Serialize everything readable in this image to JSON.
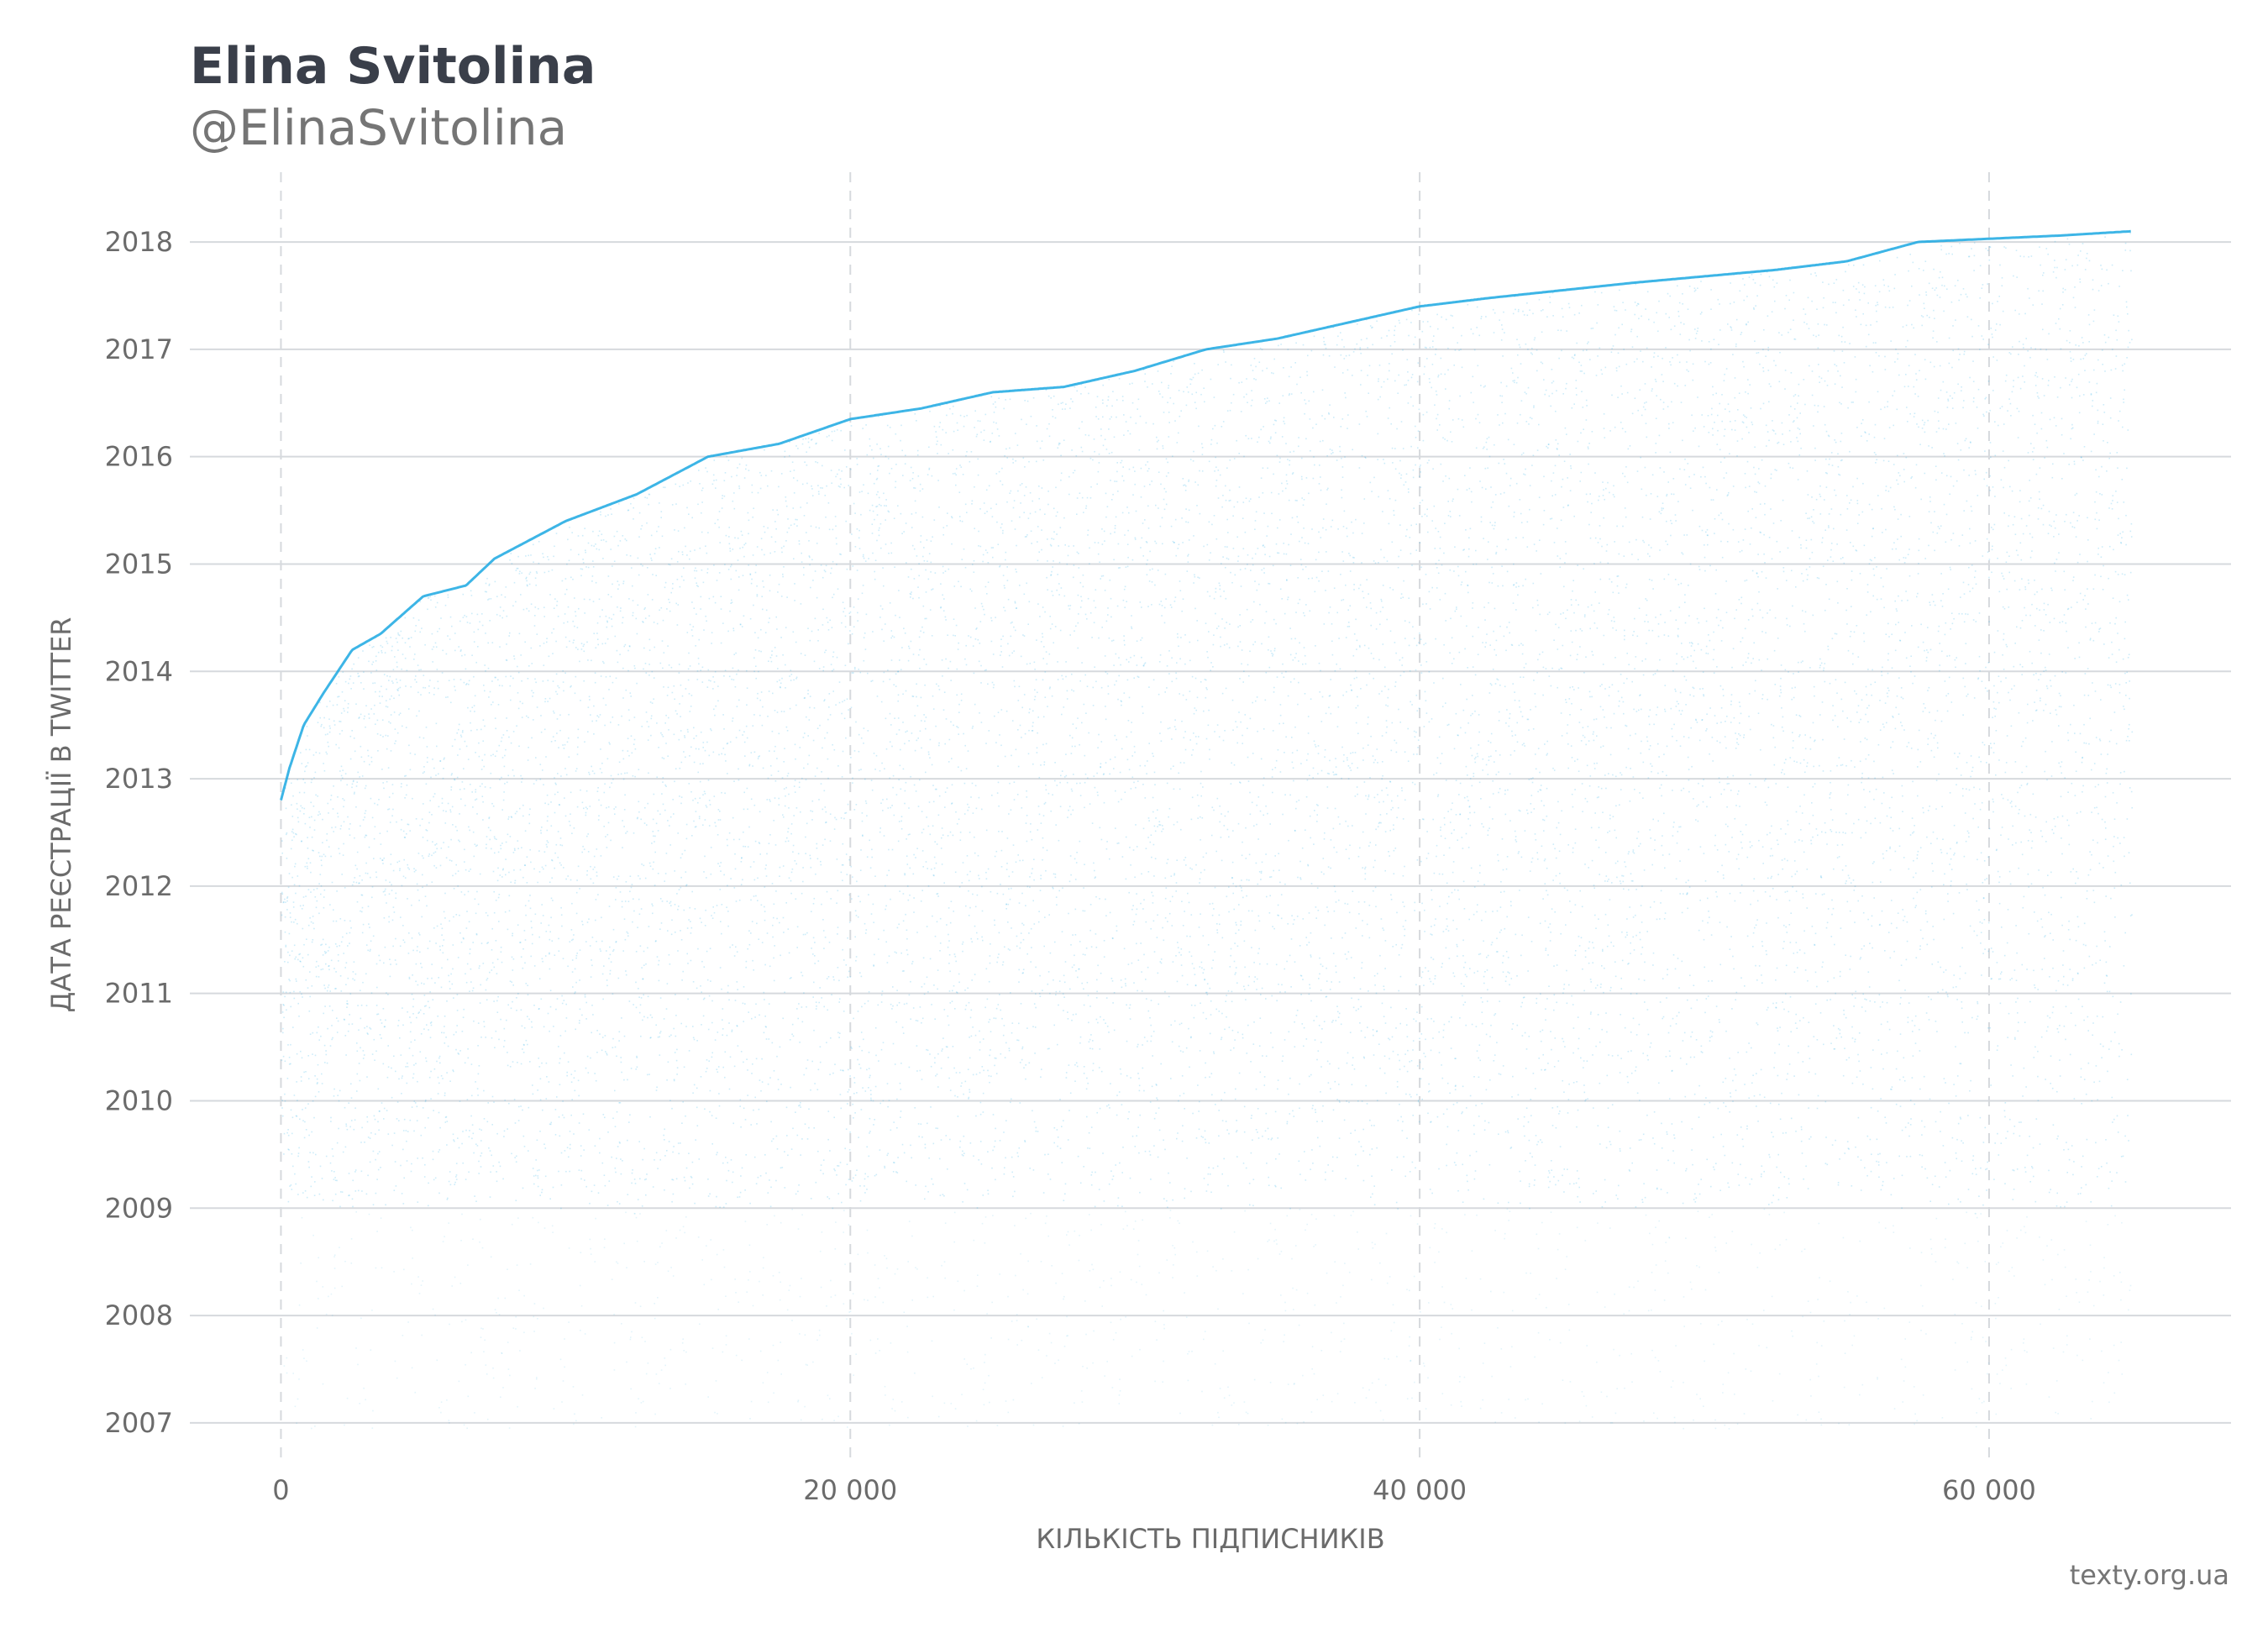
{
  "header": {
    "title": "Elina Svitolina",
    "subtitle": "@ElinaSvitolina"
  },
  "footer": {
    "credit": "texty.org.ua"
  },
  "colors": {
    "points": "#1ba8e2",
    "grid": "#d6d9dd",
    "text": "#6b6b6b",
    "title": "#3a3f4a"
  },
  "chart_data": {
    "type": "scatter",
    "title": "Elina Svitolina",
    "subtitle": "@ElinaSvitolina",
    "xlabel": "КІЛЬКІСТЬ ПІДПИСНИКІВ",
    "ylabel": "ДАТА РЕЄСТРАЦІЇ В TWITTER",
    "xlim": [
      -3200,
      68500
    ],
    "ylim": [
      2006.6,
      2018.65
    ],
    "x_ticks": [
      0,
      20000,
      40000,
      60000
    ],
    "x_tick_labels": [
      "0",
      "20 000",
      "40 000",
      "60 000"
    ],
    "y_ticks": [
      2007,
      2008,
      2009,
      2010,
      2011,
      2012,
      2013,
      2014,
      2015,
      2016,
      2017,
      2018
    ],
    "y_tick_labels": [
      "2007",
      "2008",
      "2009",
      "2010",
      "2011",
      "2012",
      "2013",
      "2014",
      "2015",
      "2016",
      "2017",
      "2018"
    ],
    "grid": {
      "x": "dashed",
      "y": "solid"
    },
    "follower_count": 65000,
    "upper_envelope": {
      "x": [
        0,
        300,
        800,
        1500,
        2500,
        3500,
        5000,
        6500,
        7500,
        10000,
        12500,
        15000,
        17500,
        20000,
        22500,
        25000,
        27500,
        30000,
        32500,
        35000,
        37500,
        40000,
        42500,
        45000,
        47500,
        50000,
        52500,
        55000,
        57500,
        60000,
        62500,
        65000
      ],
      "y": [
        2012.8,
        2013.1,
        2013.5,
        2013.8,
        2014.2,
        2014.35,
        2014.7,
        2014.8,
        2015.05,
        2015.4,
        2015.65,
        2016.0,
        2016.12,
        2016.35,
        2016.45,
        2016.6,
        2016.65,
        2016.8,
        2017.0,
        2017.1,
        2017.25,
        2017.4,
        2017.48,
        2017.55,
        2017.62,
        2017.68,
        2017.74,
        2017.82,
        2018.0,
        2018.03,
        2018.06,
        2018.1
      ]
    },
    "dense_lower_bound": 2009.0
  }
}
